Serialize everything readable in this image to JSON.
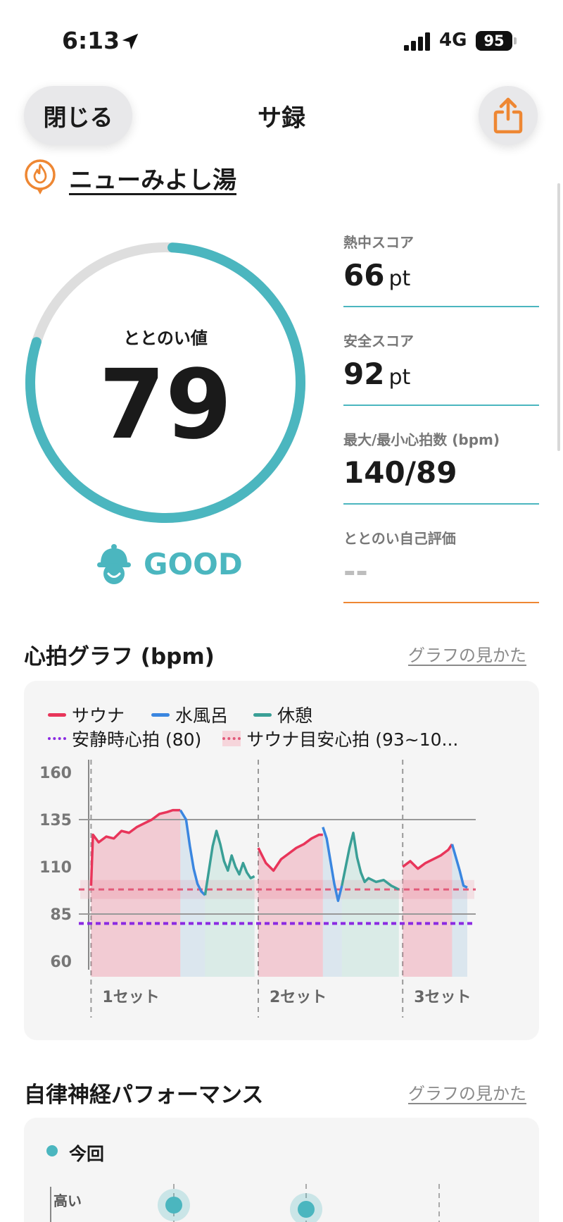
{
  "status_bar": {
    "time": "6:13",
    "network": "4G",
    "battery": "95"
  },
  "nav": {
    "close_label": "閉じる",
    "title": "サ録"
  },
  "facility": {
    "name": "ニューみよし湯"
  },
  "score": {
    "label": "ととのい値",
    "value": "79",
    "value_fraction": 0.79,
    "rating": "GOOD"
  },
  "metrics": [
    {
      "label": "熱中スコア",
      "value": "66",
      "unit": "pt"
    },
    {
      "label": "安全スコア",
      "value": "92",
      "unit": "pt"
    },
    {
      "label": "最大/最小心拍数 (bpm)",
      "value": "140/89",
      "unit": ""
    },
    {
      "label": "ととのい自己評価",
      "value": "--",
      "unit": ""
    }
  ],
  "heart_rate_section": {
    "title": "心拍グラフ (bpm)",
    "help_link": "グラフの見かた"
  },
  "autonomic_section": {
    "title": "自律神経パフォーマンス",
    "help_link": "グラフの見かた"
  },
  "colors": {
    "sauna": "#e8355a",
    "cold_bath": "#3a86e0",
    "rest": "#3a9f96",
    "resting_hr": "#8b2be2",
    "target_hr": "#e25a7a",
    "accent": "#4bb6bf",
    "share": "#ee8733"
  },
  "chart_data": {
    "type": "line",
    "title": "心拍グラフ (bpm)",
    "ylabel": "bpm",
    "yticks": [
      60,
      85,
      110,
      135,
      160
    ],
    "ylim": [
      60,
      160
    ],
    "legend": {
      "sauna": "サウナ",
      "cold_bath": "水風呂",
      "rest": "休憩",
      "resting_hr": "安静時心拍 (80)",
      "target_hr": "サウナ目安心拍 (93~10..."
    },
    "resting_hr": 80,
    "target_hr_band": [
      93,
      103
    ],
    "target_hr_line": 98,
    "reference_line": 135,
    "reference_line_2": 85,
    "sets": [
      "1セット",
      "2セット",
      "3セット"
    ],
    "x_range": [
      0,
      100
    ],
    "set_starts": [
      1,
      45,
      83
    ],
    "segments": [
      {
        "phase": "sauna",
        "points": [
          [
            1,
            100
          ],
          [
            1.5,
            127
          ],
          [
            3,
            123
          ],
          [
            5,
            126
          ],
          [
            7,
            125
          ],
          [
            9,
            129
          ],
          [
            11,
            128
          ],
          [
            13,
            131
          ],
          [
            15,
            133
          ],
          [
            17,
            135
          ],
          [
            19,
            138
          ],
          [
            21,
            139
          ],
          [
            22.5,
            140
          ],
          [
            24.5,
            140
          ]
        ]
      },
      {
        "phase": "cold_bath",
        "points": [
          [
            24.5,
            140
          ],
          [
            26,
            135
          ],
          [
            27,
            121
          ],
          [
            28,
            109
          ],
          [
            29,
            101
          ],
          [
            30,
            97
          ],
          [
            31,
            95
          ]
        ]
      },
      {
        "phase": "rest",
        "points": [
          [
            31,
            95
          ],
          [
            32,
            108
          ],
          [
            33,
            121
          ],
          [
            34,
            129
          ],
          [
            35,
            122
          ],
          [
            36,
            113
          ],
          [
            37,
            108
          ],
          [
            38,
            116
          ],
          [
            39,
            110
          ],
          [
            40,
            106
          ],
          [
            41,
            112
          ],
          [
            42,
            107
          ],
          [
            43,
            104
          ],
          [
            44,
            105
          ]
        ]
      },
      {
        "phase": "sauna",
        "points": [
          [
            45,
            120
          ],
          [
            47,
            112
          ],
          [
            49,
            108
          ],
          [
            51,
            114
          ],
          [
            53,
            117
          ],
          [
            55,
            120
          ],
          [
            57,
            122
          ],
          [
            59,
            125
          ],
          [
            61,
            127
          ],
          [
            62,
            127
          ]
        ]
      },
      {
        "phase": "cold_bath",
        "points": [
          [
            62,
            131
          ],
          [
            63,
            125
          ],
          [
            64,
            113
          ],
          [
            65,
            101
          ],
          [
            66,
            92
          ],
          [
            67,
            100
          ]
        ]
      },
      {
        "phase": "rest",
        "points": [
          [
            67,
            100
          ],
          [
            68,
            110
          ],
          [
            69,
            120
          ],
          [
            70,
            128
          ],
          [
            71,
            115
          ],
          [
            72,
            107
          ],
          [
            73,
            102
          ],
          [
            74,
            104
          ],
          [
            76,
            102
          ],
          [
            78,
            103
          ],
          [
            80,
            100
          ],
          [
            82,
            98
          ]
        ]
      },
      {
        "phase": "sauna",
        "points": [
          [
            83,
            110
          ],
          [
            85,
            113
          ],
          [
            87,
            109
          ],
          [
            89,
            112
          ],
          [
            91,
            114
          ],
          [
            93,
            116
          ],
          [
            95,
            119
          ],
          [
            96,
            122
          ]
        ]
      },
      {
        "phase": "cold_bath",
        "points": [
          [
            96,
            122
          ],
          [
            97,
            115
          ],
          [
            98,
            108
          ],
          [
            99,
            100
          ],
          [
            100,
            99
          ]
        ]
      }
    ]
  },
  "autonomic_chart": {
    "legend_label": "今回",
    "y_label": "高い"
  }
}
